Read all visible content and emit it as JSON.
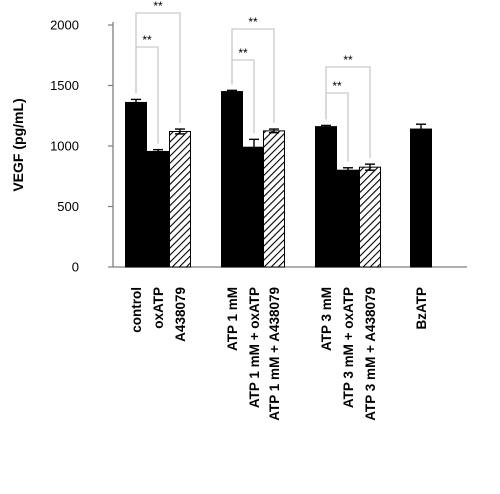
{
  "chart_data": {
    "type": "bar",
    "title": "",
    "xlabel": "",
    "ylabel": "VEGF (pg/mL)",
    "ylim": [
      0,
      2000
    ],
    "yticks": [
      0,
      500,
      1000,
      1500,
      2000
    ],
    "grid": false,
    "legend": "none",
    "categories": [
      "control",
      "oxATP",
      "A438079",
      "ATP 1 mM",
      "ATP 1 mM + oxATP",
      "ATP 1 mM + A438079",
      "ATP 3 mM",
      "ATP 3 mM + oxATP",
      "ATP 3 mM + A438079",
      "BzATP"
    ],
    "values": [
      1360,
      955,
      1120,
      1450,
      990,
      1125,
      1160,
      800,
      825,
      1140
    ],
    "errors": [
      25,
      15,
      20,
      10,
      65,
      15,
      10,
      20,
      25,
      40
    ],
    "fills": [
      "solid",
      "solid",
      "hatched",
      "solid",
      "solid",
      "hatched",
      "solid",
      "solid",
      "hatched",
      "solid"
    ],
    "colors": {
      "solid": "#000000",
      "hatched": "#000000",
      "hatch_bg": "#ffffff",
      "axis": "#7f7f7f",
      "bracket": "#bfbfbf"
    },
    "annotations": [
      {
        "label": "**",
        "from": "control",
        "to": "A438079"
      },
      {
        "label": "**",
        "from": "control",
        "to": "oxATP"
      },
      {
        "label": "**",
        "from": "ATP 1 mM",
        "to": "ATP 1 mM + A438079"
      },
      {
        "label": "**",
        "from": "ATP 1 mM",
        "to": "ATP 1 mM + oxATP"
      },
      {
        "label": "**",
        "from": "ATP 3 mM",
        "to": "ATP 3 mM + A438079"
      },
      {
        "label": "**",
        "from": "ATP 3 mM",
        "to": "ATP 3 mM + oxATP"
      }
    ]
  }
}
